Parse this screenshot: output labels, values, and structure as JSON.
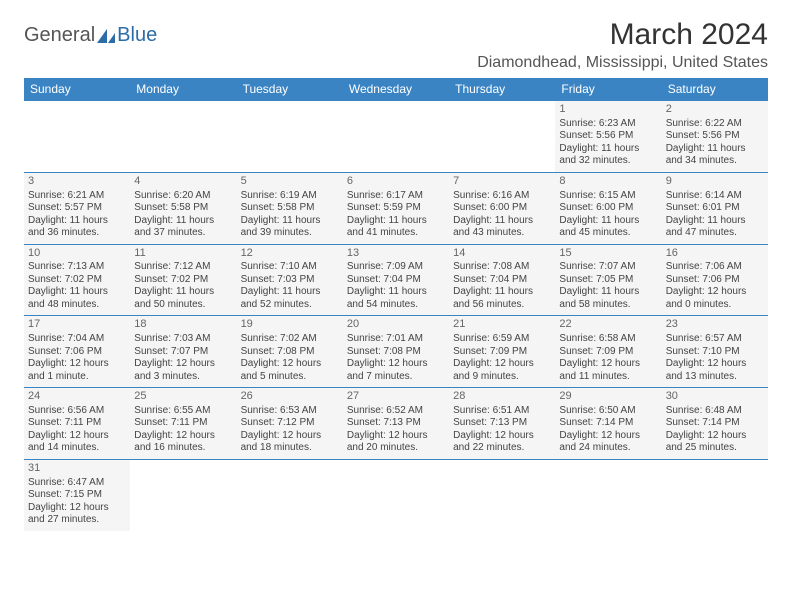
{
  "logo": {
    "text1": "General",
    "text2": "Blue"
  },
  "title": "March 2024",
  "location": "Diamondhead, Mississippi, United States",
  "colors": {
    "header_bg": "#3b84c4",
    "header_fg": "#ffffff",
    "border": "#3b84c4",
    "cell_bg": "#f5f5f5"
  },
  "weekdays": [
    "Sunday",
    "Monday",
    "Tuesday",
    "Wednesday",
    "Thursday",
    "Friday",
    "Saturday"
  ],
  "weeks": [
    [
      null,
      null,
      null,
      null,
      null,
      {
        "n": "1",
        "sr": "Sunrise: 6:23 AM",
        "ss": "Sunset: 5:56 PM",
        "d1": "Daylight: 11 hours",
        "d2": "and 32 minutes."
      },
      {
        "n": "2",
        "sr": "Sunrise: 6:22 AM",
        "ss": "Sunset: 5:56 PM",
        "d1": "Daylight: 11 hours",
        "d2": "and 34 minutes."
      }
    ],
    [
      {
        "n": "3",
        "sr": "Sunrise: 6:21 AM",
        "ss": "Sunset: 5:57 PM",
        "d1": "Daylight: 11 hours",
        "d2": "and 36 minutes."
      },
      {
        "n": "4",
        "sr": "Sunrise: 6:20 AM",
        "ss": "Sunset: 5:58 PM",
        "d1": "Daylight: 11 hours",
        "d2": "and 37 minutes."
      },
      {
        "n": "5",
        "sr": "Sunrise: 6:19 AM",
        "ss": "Sunset: 5:58 PM",
        "d1": "Daylight: 11 hours",
        "d2": "and 39 minutes."
      },
      {
        "n": "6",
        "sr": "Sunrise: 6:17 AM",
        "ss": "Sunset: 5:59 PM",
        "d1": "Daylight: 11 hours",
        "d2": "and 41 minutes."
      },
      {
        "n": "7",
        "sr": "Sunrise: 6:16 AM",
        "ss": "Sunset: 6:00 PM",
        "d1": "Daylight: 11 hours",
        "d2": "and 43 minutes."
      },
      {
        "n": "8",
        "sr": "Sunrise: 6:15 AM",
        "ss": "Sunset: 6:00 PM",
        "d1": "Daylight: 11 hours",
        "d2": "and 45 minutes."
      },
      {
        "n": "9",
        "sr": "Sunrise: 6:14 AM",
        "ss": "Sunset: 6:01 PM",
        "d1": "Daylight: 11 hours",
        "d2": "and 47 minutes."
      }
    ],
    [
      {
        "n": "10",
        "sr": "Sunrise: 7:13 AM",
        "ss": "Sunset: 7:02 PM",
        "d1": "Daylight: 11 hours",
        "d2": "and 48 minutes."
      },
      {
        "n": "11",
        "sr": "Sunrise: 7:12 AM",
        "ss": "Sunset: 7:02 PM",
        "d1": "Daylight: 11 hours",
        "d2": "and 50 minutes."
      },
      {
        "n": "12",
        "sr": "Sunrise: 7:10 AM",
        "ss": "Sunset: 7:03 PM",
        "d1": "Daylight: 11 hours",
        "d2": "and 52 minutes."
      },
      {
        "n": "13",
        "sr": "Sunrise: 7:09 AM",
        "ss": "Sunset: 7:04 PM",
        "d1": "Daylight: 11 hours",
        "d2": "and 54 minutes."
      },
      {
        "n": "14",
        "sr": "Sunrise: 7:08 AM",
        "ss": "Sunset: 7:04 PM",
        "d1": "Daylight: 11 hours",
        "d2": "and 56 minutes."
      },
      {
        "n": "15",
        "sr": "Sunrise: 7:07 AM",
        "ss": "Sunset: 7:05 PM",
        "d1": "Daylight: 11 hours",
        "d2": "and 58 minutes."
      },
      {
        "n": "16",
        "sr": "Sunrise: 7:06 AM",
        "ss": "Sunset: 7:06 PM",
        "d1": "Daylight: 12 hours",
        "d2": "and 0 minutes."
      }
    ],
    [
      {
        "n": "17",
        "sr": "Sunrise: 7:04 AM",
        "ss": "Sunset: 7:06 PM",
        "d1": "Daylight: 12 hours",
        "d2": "and 1 minute."
      },
      {
        "n": "18",
        "sr": "Sunrise: 7:03 AM",
        "ss": "Sunset: 7:07 PM",
        "d1": "Daylight: 12 hours",
        "d2": "and 3 minutes."
      },
      {
        "n": "19",
        "sr": "Sunrise: 7:02 AM",
        "ss": "Sunset: 7:08 PM",
        "d1": "Daylight: 12 hours",
        "d2": "and 5 minutes."
      },
      {
        "n": "20",
        "sr": "Sunrise: 7:01 AM",
        "ss": "Sunset: 7:08 PM",
        "d1": "Daylight: 12 hours",
        "d2": "and 7 minutes."
      },
      {
        "n": "21",
        "sr": "Sunrise: 6:59 AM",
        "ss": "Sunset: 7:09 PM",
        "d1": "Daylight: 12 hours",
        "d2": "and 9 minutes."
      },
      {
        "n": "22",
        "sr": "Sunrise: 6:58 AM",
        "ss": "Sunset: 7:09 PM",
        "d1": "Daylight: 12 hours",
        "d2": "and 11 minutes."
      },
      {
        "n": "23",
        "sr": "Sunrise: 6:57 AM",
        "ss": "Sunset: 7:10 PM",
        "d1": "Daylight: 12 hours",
        "d2": "and 13 minutes."
      }
    ],
    [
      {
        "n": "24",
        "sr": "Sunrise: 6:56 AM",
        "ss": "Sunset: 7:11 PM",
        "d1": "Daylight: 12 hours",
        "d2": "and 14 minutes."
      },
      {
        "n": "25",
        "sr": "Sunrise: 6:55 AM",
        "ss": "Sunset: 7:11 PM",
        "d1": "Daylight: 12 hours",
        "d2": "and 16 minutes."
      },
      {
        "n": "26",
        "sr": "Sunrise: 6:53 AM",
        "ss": "Sunset: 7:12 PM",
        "d1": "Daylight: 12 hours",
        "d2": "and 18 minutes."
      },
      {
        "n": "27",
        "sr": "Sunrise: 6:52 AM",
        "ss": "Sunset: 7:13 PM",
        "d1": "Daylight: 12 hours",
        "d2": "and 20 minutes."
      },
      {
        "n": "28",
        "sr": "Sunrise: 6:51 AM",
        "ss": "Sunset: 7:13 PM",
        "d1": "Daylight: 12 hours",
        "d2": "and 22 minutes."
      },
      {
        "n": "29",
        "sr": "Sunrise: 6:50 AM",
        "ss": "Sunset: 7:14 PM",
        "d1": "Daylight: 12 hours",
        "d2": "and 24 minutes."
      },
      {
        "n": "30",
        "sr": "Sunrise: 6:48 AM",
        "ss": "Sunset: 7:14 PM",
        "d1": "Daylight: 12 hours",
        "d2": "and 25 minutes."
      }
    ],
    [
      {
        "n": "31",
        "sr": "Sunrise: 6:47 AM",
        "ss": "Sunset: 7:15 PM",
        "d1": "Daylight: 12 hours",
        "d2": "and 27 minutes."
      },
      null,
      null,
      null,
      null,
      null,
      null
    ]
  ]
}
